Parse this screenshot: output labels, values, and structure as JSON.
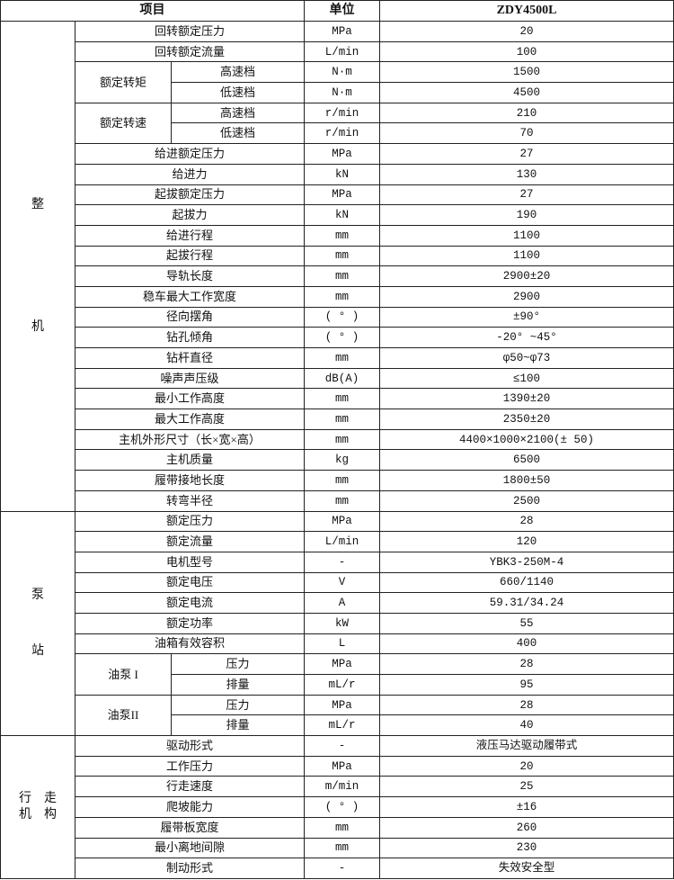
{
  "header": {
    "item": "项目",
    "unit": "单位",
    "model": "ZDY4500L"
  },
  "sections": [
    {
      "category": [
        "整",
        "机"
      ],
      "layout": "vertical",
      "rows": [
        {
          "item": "回转额定压力",
          "unit": "MPa",
          "value": "20"
        },
        {
          "item": "回转额定流量",
          "unit": "L/min",
          "value": "100"
        },
        {
          "group": "额定转矩",
          "sub": "高速档",
          "unit": "N·m",
          "value": "1500"
        },
        {
          "sub": "低速档",
          "unit": "N·m",
          "value": "4500"
        },
        {
          "group": "额定转速",
          "sub": "高速档",
          "unit": "r/min",
          "value": "210"
        },
        {
          "sub": "低速档",
          "unit": "r/min",
          "value": "70"
        },
        {
          "item": "给进额定压力",
          "unit": "MPa",
          "value": "27"
        },
        {
          "item": "给进力",
          "unit": "kN",
          "value": "130"
        },
        {
          "item": "起拔额定压力",
          "unit": "MPa",
          "value": "27"
        },
        {
          "item": "起拔力",
          "unit": "kN",
          "value": "190"
        },
        {
          "item": "给进行程",
          "unit": "mm",
          "value": "1100"
        },
        {
          "item": "起拔行程",
          "unit": "mm",
          "value": "1100"
        },
        {
          "item": "导轨长度",
          "unit": "mm",
          "value": "2900±20"
        },
        {
          "item": "稳车最大工作宽度",
          "unit": "mm",
          "value": "2900"
        },
        {
          "item": "径向摆角",
          "unit": "( ° )",
          "value": "±90°"
        },
        {
          "item": "钻孔倾角",
          "unit": "( ° )",
          "value": "-20° ~45°"
        },
        {
          "item": "钻杆直径",
          "unit": "mm",
          "value": "φ50~φ73"
        },
        {
          "item": "噪声声压级",
          "unit": "dB(A)",
          "value": "≤100"
        },
        {
          "item": "最小工作高度",
          "unit": "mm",
          "value": "1390±20"
        },
        {
          "item": "最大工作高度",
          "unit": "mm",
          "value": "2350±20"
        },
        {
          "item": "主机外形尺寸（长×宽×高）",
          "unit": "mm",
          "value": "4400×1000×2100(± 50)"
        },
        {
          "item": "主机质量",
          "unit": "kg",
          "value": "6500"
        },
        {
          "item": "履带接地长度",
          "unit": "mm",
          "value": "1800±50"
        },
        {
          "item": "转弯半径",
          "unit": "mm",
          "value": "2500"
        }
      ]
    },
    {
      "category": [
        "泵",
        "站"
      ],
      "layout": "vertical",
      "rows": [
        {
          "item": "额定压力",
          "unit": "MPa",
          "value": "28"
        },
        {
          "item": "额定流量",
          "unit": "L/min",
          "value": "120"
        },
        {
          "item": "电机型号",
          "unit": "-",
          "value": "YBK3-250M-4"
        },
        {
          "item": "额定电压",
          "unit": "V",
          "value": "660/1140"
        },
        {
          "item": "额定电流",
          "unit": "A",
          "value": "59.31/34.24"
        },
        {
          "item": "额定功率",
          "unit": "kW",
          "value": "55"
        },
        {
          "item": "油箱有效容积",
          "unit": "L",
          "value": "400"
        },
        {
          "group": "油泵 I",
          "sub": "压力",
          "unit": "MPa",
          "value": "28"
        },
        {
          "sub": "排量",
          "unit": "mL/r",
          "value": "95"
        },
        {
          "group": "油泵II",
          "sub": "压力",
          "unit": "MPa",
          "value": "28"
        },
        {
          "sub": "排量",
          "unit": "mL/r",
          "value": "40"
        }
      ]
    },
    {
      "category": [
        "行",
        "走",
        "机",
        "构"
      ],
      "layout": "grid",
      "rows": [
        {
          "item": "驱动形式",
          "unit": "-",
          "value": "液压马达驱动履带式"
        },
        {
          "item": "工作压力",
          "unit": "MPa",
          "value": "20"
        },
        {
          "item": "行走速度",
          "unit": "m/min",
          "value": "25"
        },
        {
          "item": "爬坡能力",
          "unit": "( ° )",
          "value": "±16"
        },
        {
          "item": "履带板宽度",
          "unit": "mm",
          "value": "260"
        },
        {
          "item": "最小离地间隙",
          "unit": "mm",
          "value": "230"
        },
        {
          "item": "制动形式",
          "unit": "-",
          "value": "失效安全型"
        }
      ]
    }
  ]
}
